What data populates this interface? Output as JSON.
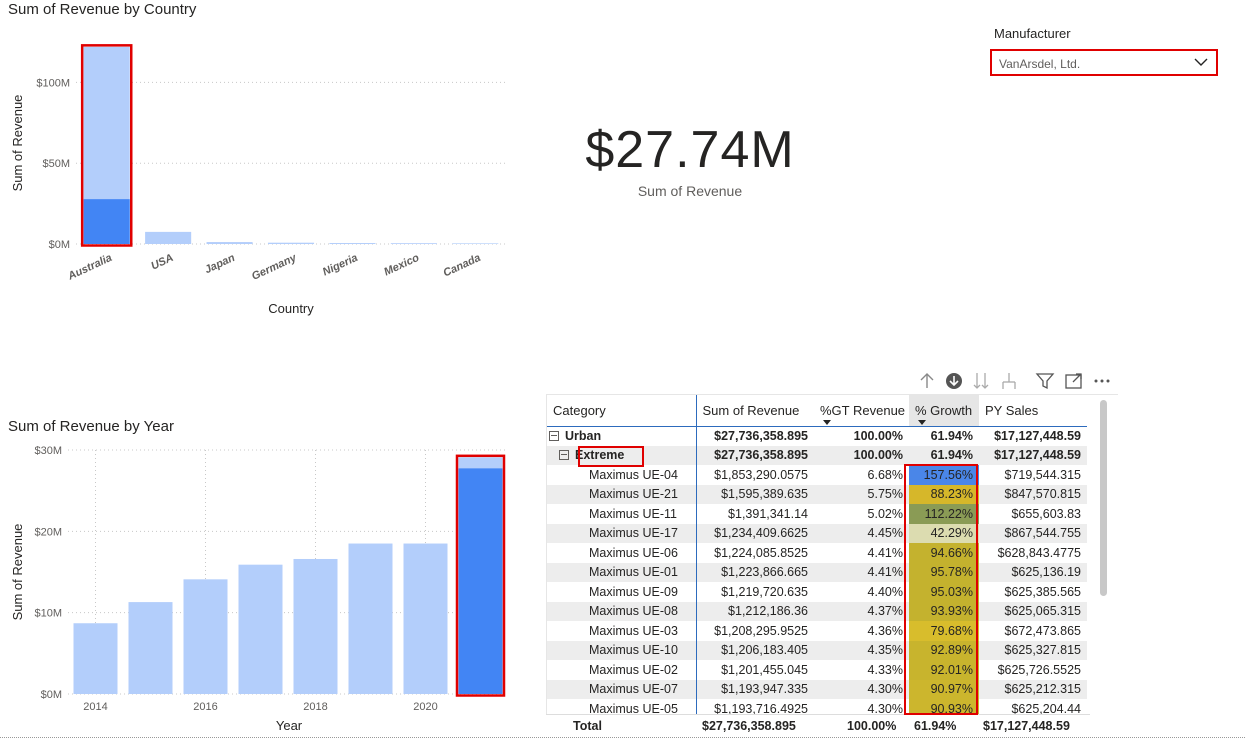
{
  "country_chart": {
    "title": "Sum of Revenue by Country"
  },
  "year_chart": {
    "title": "Sum of Revenue by Year"
  },
  "slicer": {
    "label": "Manufacturer",
    "selected": "VanArsdel, Ltd."
  },
  "card": {
    "value": "$27.74M",
    "label": "Sum of Revenue"
  },
  "toolbar": {
    "icons": [
      "arrow-up-icon",
      "drill-down-circle-icon",
      "double-arrow-down-icon",
      "expand-hierarchy-icon",
      "filter-icon",
      "focus-mode-icon",
      "more-options-icon"
    ]
  },
  "matrix": {
    "headers": [
      "Category",
      "Sum of Revenue",
      "%GT Revenue",
      "% Growth",
      "PY Sales"
    ],
    "rows": [
      {
        "label": "Urban",
        "level": 0,
        "bold": true,
        "expander": true,
        "revenue": "$27,736,358.895",
        "gt": "100.00%",
        "growth": "61.94%",
        "py": "$17,127,448.59",
        "growth_bg": ""
      },
      {
        "label": "Extreme",
        "level": 1,
        "bold": true,
        "expander": true,
        "revenue": "$27,736,358.895",
        "gt": "100.00%",
        "growth": "61.94%",
        "py": "$17,127,448.59",
        "growth_bg": ""
      },
      {
        "label": "Maximus UE-04",
        "level": 2,
        "bold": false,
        "expander": false,
        "revenue": "$1,853,290.0575",
        "gt": "6.68%",
        "growth": "157.56%",
        "py": "$719,544.315",
        "growth_bg": "#4a86e8"
      },
      {
        "label": "Maximus UE-21",
        "level": 2,
        "bold": false,
        "expander": false,
        "revenue": "$1,595,389.635",
        "gt": "5.75%",
        "growth": "88.23%",
        "py": "$847,570.815",
        "growth_bg": "#d6b72a"
      },
      {
        "label": "Maximus UE-11",
        "level": 2,
        "bold": false,
        "expander": false,
        "revenue": "$1,391,341.14",
        "gt": "5.02%",
        "growth": "112.22%",
        "py": "$655,603.83",
        "growth_bg": "#8a9b55"
      },
      {
        "label": "Maximus UE-17",
        "level": 2,
        "bold": false,
        "expander": false,
        "revenue": "$1,234,409.6625",
        "gt": "4.45%",
        "growth": "42.29%",
        "py": "$867,544.755",
        "growth_bg": "#dcdcb0"
      },
      {
        "label": "Maximus UE-06",
        "level": 2,
        "bold": false,
        "expander": false,
        "revenue": "$1,224,085.8525",
        "gt": "4.41%",
        "growth": "94.66%",
        "py": "$628,843.4775",
        "growth_bg": "#c4b22e"
      },
      {
        "label": "Maximus UE-01",
        "level": 2,
        "bold": false,
        "expander": false,
        "revenue": "$1,223,866.665",
        "gt": "4.41%",
        "growth": "95.78%",
        "py": "$625,136.19",
        "growth_bg": "#c4b22e"
      },
      {
        "label": "Maximus UE-09",
        "level": 2,
        "bold": false,
        "expander": false,
        "revenue": "$1,219,720.635",
        "gt": "4.40%",
        "growth": "95.03%",
        "py": "$625,385.565",
        "growth_bg": "#c4b22e"
      },
      {
        "label": "Maximus UE-08",
        "level": 2,
        "bold": false,
        "expander": false,
        "revenue": "$1,212,186.36",
        "gt": "4.37%",
        "growth": "93.93%",
        "py": "$625,065.315",
        "growth_bg": "#c4b22e"
      },
      {
        "label": "Maximus UE-03",
        "level": 2,
        "bold": false,
        "expander": false,
        "revenue": "$1,208,295.9525",
        "gt": "4.36%",
        "growth": "79.68%",
        "py": "$672,473.865",
        "growth_bg": "#d8bd2c"
      },
      {
        "label": "Maximus UE-10",
        "level": 2,
        "bold": false,
        "expander": false,
        "revenue": "$1,206,183.405",
        "gt": "4.35%",
        "growth": "92.89%",
        "py": "$625,327.815",
        "growth_bg": "#c8b42d"
      },
      {
        "label": "Maximus UE-02",
        "level": 2,
        "bold": false,
        "expander": false,
        "revenue": "$1,201,455.045",
        "gt": "4.33%",
        "growth": "92.01%",
        "py": "$625,726.5525",
        "growth_bg": "#c8b42d"
      },
      {
        "label": "Maximus UE-07",
        "level": 2,
        "bold": false,
        "expander": false,
        "revenue": "$1,193,947.335",
        "gt": "4.30%",
        "growth": "90.97%",
        "py": "$625,212.315",
        "growth_bg": "#ccb62d"
      },
      {
        "label": "Maximus UE-05",
        "level": 2,
        "bold": false,
        "expander": false,
        "revenue": "$1,193,716.4925",
        "gt": "4.30%",
        "growth": "90.93%",
        "py": "$625,204.44",
        "growth_bg": "#ccb62d"
      }
    ],
    "total": {
      "label": "Total",
      "revenue": "$27,736,358.895",
      "gt": "100.00%",
      "growth": "61.94%",
      "py": "$17,127,448.59"
    }
  },
  "colors": {
    "bar_light": "#b3cefb",
    "bar_dark": "#4285f4",
    "highlight": "#e00000",
    "grid": "#c8c8c8"
  },
  "chart_data": [
    {
      "type": "bar",
      "title": "Sum of Revenue by Country",
      "xlabel": "Country",
      "ylabel": "Sum of Revenue",
      "categories": [
        "Australia",
        "USA",
        "Japan",
        "Germany",
        "Nigeria",
        "Mexico",
        "Canada"
      ],
      "series": [
        {
          "name": "Total",
          "values": [
            122,
            7.5,
            1.2,
            0.8,
            0.6,
            0.5,
            0.4
          ]
        },
        {
          "name": "Highlighted",
          "values": [
            27.74,
            0,
            0,
            0,
            0,
            0,
            0
          ]
        }
      ],
      "ylim": [
        0,
        125
      ],
      "yticks": [
        0,
        50,
        100
      ],
      "ytick_labels": [
        "$0M",
        "$50M",
        "$100M"
      ],
      "grid": true
    },
    {
      "type": "bar",
      "title": "Sum of Revenue by Year",
      "xlabel": "Year",
      "ylabel": "Sum of Revenue",
      "x": [
        2014,
        2015,
        2016,
        2017,
        2018,
        2019,
        2020,
        2021
      ],
      "xtick_labels": [
        "2014",
        "2016",
        "2018",
        "2020"
      ],
      "series": [
        {
          "name": "Total",
          "values": [
            8.7,
            11.3,
            14.1,
            15.9,
            16.6,
            18.5,
            18.5,
            29.1
          ]
        },
        {
          "name": "Highlighted",
          "values": [
            0,
            0,
            0,
            0,
            0,
            0,
            0,
            27.74
          ]
        }
      ],
      "ylim": [
        0,
        30
      ],
      "yticks": [
        0,
        10,
        20,
        30
      ],
      "ytick_labels": [
        "$0M",
        "$10M",
        "$20M",
        "$30M"
      ],
      "grid": true
    }
  ]
}
